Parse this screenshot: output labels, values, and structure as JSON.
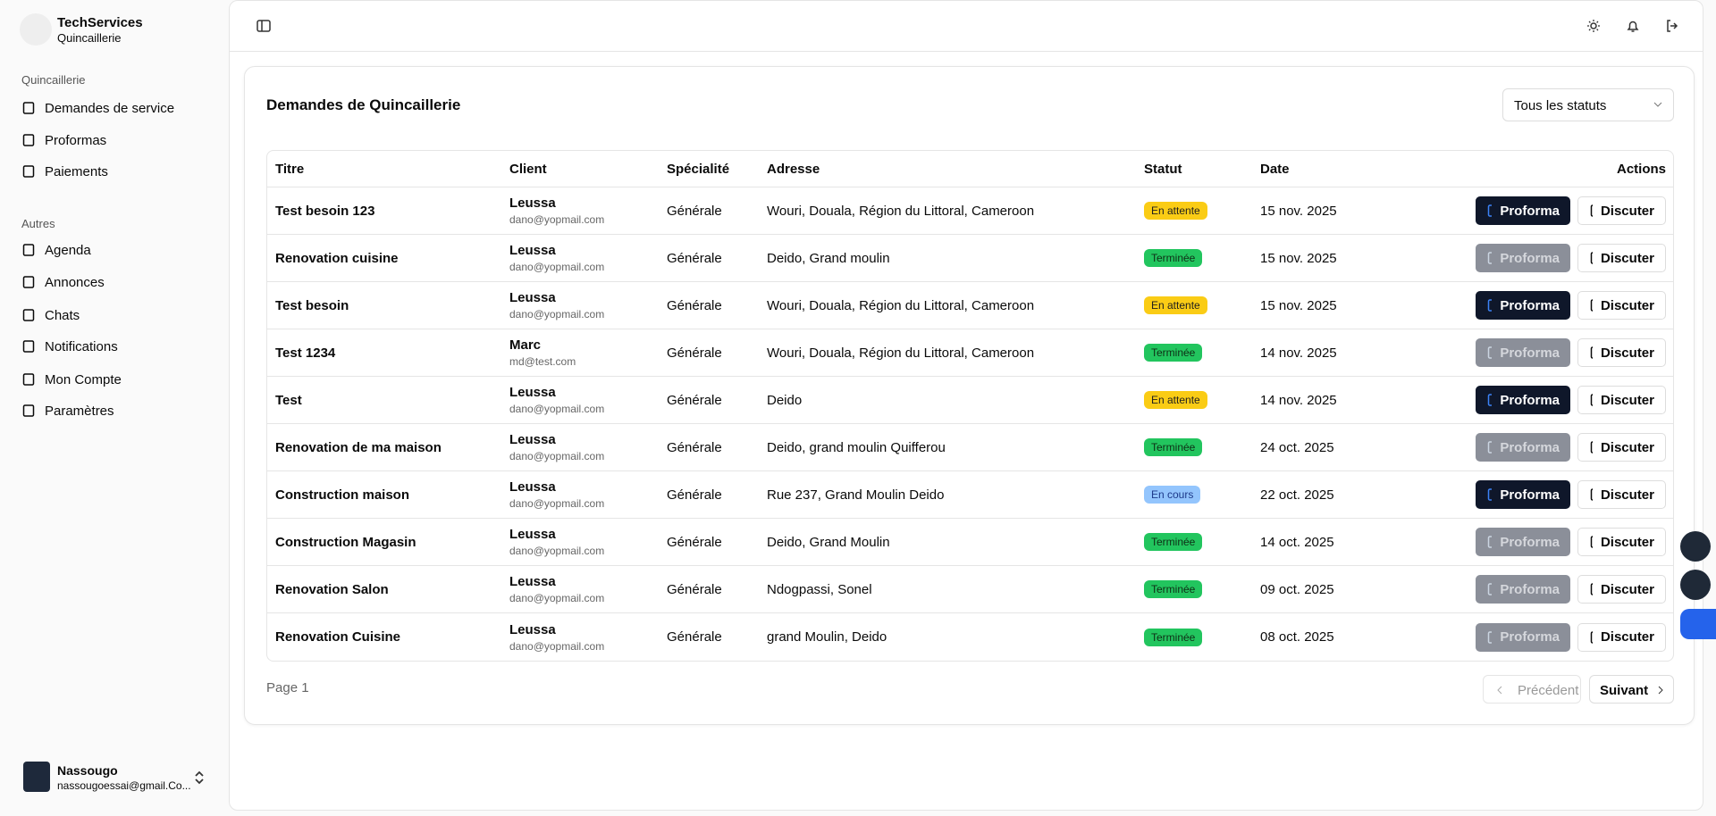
{
  "sidebar": {
    "brand": {
      "name": "TechServices",
      "subtitle": "Quincaillerie"
    },
    "sections": [
      {
        "label": "Quincaillerie",
        "items": [
          "Demandes de service",
          "Proformas",
          "Paiements"
        ]
      },
      {
        "label": "Autres",
        "items": [
          "Agenda",
          "Annonces",
          "Chats",
          "Notifications",
          "Mon Compte",
          "Paramètres"
        ]
      }
    ],
    "user": {
      "name": "Nassougo",
      "email": "nassougoessai@gmail.Co..."
    }
  },
  "card": {
    "title": "Demandes de Quincaillerie",
    "filter": "Tous les statuts"
  },
  "table": {
    "headers": [
      "Titre",
      "Client",
      "Spécialité",
      "Adresse",
      "Statut",
      "Date",
      "Actions"
    ],
    "actions": {
      "proforma": "Proforma",
      "discuss": "Discuter"
    },
    "rows": [
      {
        "title": "Test besoin 123",
        "client": "Leussa",
        "email": "dano@yopmail.com",
        "specialty": "Générale",
        "address": "Wouri, Douala, Région du Littoral, Cameroon",
        "status": "En attente",
        "date": "15 nov. 2025",
        "proforma_enabled": true
      },
      {
        "title": "Renovation cuisine",
        "client": "Leussa",
        "email": "dano@yopmail.com",
        "specialty": "Générale",
        "address": "Deido, Grand moulin",
        "status": "Terminée",
        "date": "15 nov. 2025",
        "proforma_enabled": false
      },
      {
        "title": "Test besoin",
        "client": "Leussa",
        "email": "dano@yopmail.com",
        "specialty": "Générale",
        "address": "Wouri, Douala, Région du Littoral, Cameroon",
        "status": "En attente",
        "date": "15 nov. 2025",
        "proforma_enabled": true
      },
      {
        "title": "Test 1234",
        "client": "Marc",
        "email": "md@test.com",
        "specialty": "Générale",
        "address": "Wouri, Douala, Région du Littoral, Cameroon",
        "status": "Terminée",
        "date": "14 nov. 2025",
        "proforma_enabled": false
      },
      {
        "title": "Test",
        "client": "Leussa",
        "email": "dano@yopmail.com",
        "specialty": "Générale",
        "address": "Deido",
        "status": "En attente",
        "date": "14 nov. 2025",
        "proforma_enabled": true
      },
      {
        "title": "Renovation de ma maison",
        "client": "Leussa",
        "email": "dano@yopmail.com",
        "specialty": "Générale",
        "address": "Deido, grand moulin Quifferou",
        "status": "Terminée",
        "date": "24 oct. 2025",
        "proforma_enabled": false
      },
      {
        "title": "Construction maison",
        "client": "Leussa",
        "email": "dano@yopmail.com",
        "specialty": "Générale",
        "address": "Rue 237, Grand Moulin Deido",
        "status": "En cours",
        "date": "22 oct. 2025",
        "proforma_enabled": true
      },
      {
        "title": "Construction Magasin",
        "client": "Leussa",
        "email": "dano@yopmail.com",
        "specialty": "Générale",
        "address": "Deido, Grand Moulin",
        "status": "Terminée",
        "date": "14 oct. 2025",
        "proforma_enabled": false
      },
      {
        "title": "Renovation Salon",
        "client": "Leussa",
        "email": "dano@yopmail.com",
        "specialty": "Générale",
        "address": "Ndogpassi, Sonel",
        "status": "Terminée",
        "date": "09 oct. 2025",
        "proforma_enabled": false
      },
      {
        "title": "Renovation Cuisine",
        "client": "Leussa",
        "email": "dano@yopmail.com",
        "specialty": "Générale",
        "address": "grand Moulin, Deido",
        "status": "Terminée",
        "date": "08 oct. 2025",
        "proforma_enabled": false
      }
    ]
  },
  "pagination": {
    "page": "Page 1",
    "previous": "Précédent",
    "next": "Suivant"
  }
}
